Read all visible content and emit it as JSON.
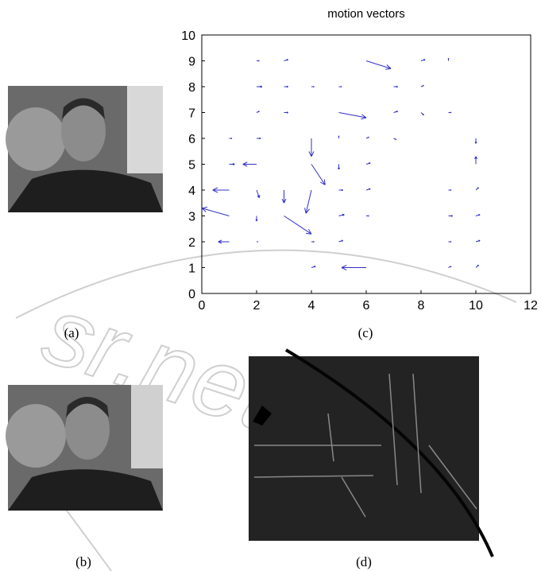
{
  "panels": {
    "a": "(a)",
    "b": "(b)",
    "c": "(c)",
    "d": "(d)"
  },
  "watermark": "sr.net",
  "chart_data": {
    "type": "quiver",
    "title": "motion vectors",
    "color": "#3030c8",
    "xlim": [
      0,
      12
    ],
    "ylim": [
      0,
      10
    ],
    "xticks": [
      0,
      2,
      4,
      6,
      8,
      10,
      12
    ],
    "yticks": [
      0,
      1,
      2,
      3,
      4,
      5,
      6,
      7,
      8,
      9,
      10
    ],
    "x": [
      2,
      3,
      6,
      8,
      9,
      2,
      3,
      4,
      5,
      7,
      8,
      2,
      3,
      5,
      7,
      8,
      9,
      1,
      2,
      4,
      5,
      6,
      7,
      10,
      1,
      2,
      4,
      5,
      6,
      10,
      1,
      2,
      3,
      4,
      5,
      6,
      9,
      10,
      1,
      2,
      3,
      5,
      6,
      9,
      10,
      1,
      2,
      4,
      5,
      9,
      10,
      4,
      6,
      9,
      10
    ],
    "y": [
      9,
      9,
      9,
      9,
      9,
      8,
      8,
      8,
      8,
      8,
      8,
      7,
      7,
      7,
      7,
      7,
      7,
      6,
      6,
      6,
      6,
      6,
      6,
      6,
      5,
      5,
      5,
      5,
      5,
      5,
      4,
      4,
      4,
      4,
      4,
      4,
      4,
      4,
      3,
      3,
      3,
      3,
      3,
      3,
      3,
      2,
      2,
      2,
      2,
      2,
      2,
      1,
      1,
      1,
      1
    ],
    "u": [
      0.1,
      0.15,
      0.9,
      0.15,
      0,
      0.2,
      0.15,
      0.1,
      0.1,
      0.15,
      0.1,
      0.1,
      0.15,
      1.0,
      0.15,
      0.1,
      0.1,
      0.1,
      0.15,
      0,
      0,
      0.1,
      0.1,
      0,
      0.2,
      -0.5,
      0.5,
      0,
      0.15,
      0,
      -0.6,
      0.1,
      0,
      -0.2,
      0.15,
      0.15,
      0.1,
      0.1,
      -1.0,
      0,
      1.0,
      0.2,
      0.1,
      0.15,
      0.15,
      -0.4,
      0.05,
      0.1,
      0.15,
      0.1,
      0.15,
      0.15,
      -0.9,
      0.1,
      0.1
    ],
    "v": [
      0,
      0.05,
      -0.3,
      0.05,
      0.1,
      0,
      0,
      0,
      0,
      0,
      0.05,
      0.05,
      0,
      -0.2,
      0.05,
      -0.1,
      0,
      0,
      0,
      -0.7,
      0.1,
      0.05,
      -0.05,
      -0.2,
      0,
      0,
      -0.8,
      -0.2,
      0.05,
      0.3,
      0,
      -0.3,
      -0.5,
      -0.9,
      0,
      0.05,
      0,
      0.1,
      0.3,
      -0.2,
      -0.7,
      0.05,
      0,
      0,
      0.05,
      0,
      0,
      0,
      0.05,
      0,
      0.05,
      0.05,
      0,
      0.05,
      0.1
    ]
  }
}
